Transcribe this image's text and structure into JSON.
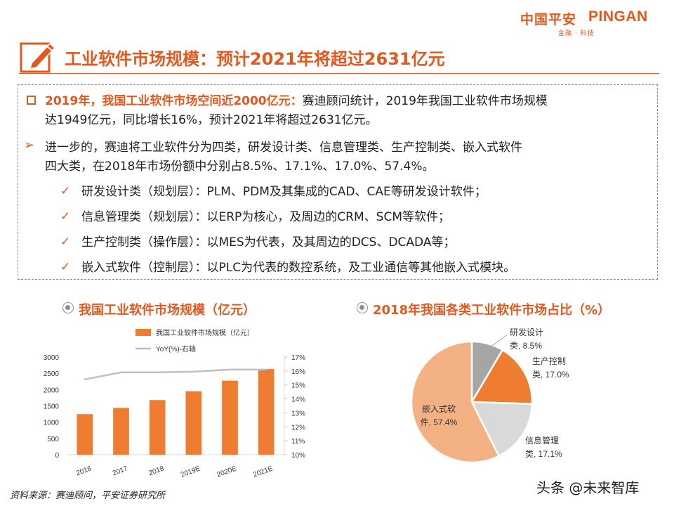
{
  "header": {
    "logo_cn": "中国平安",
    "logo_en": "PINGAN",
    "logo_sub": "金融 · 科技",
    "title": "工业软件市场规模：预计2021年将超过2631亿元"
  },
  "content": {
    "p1_bold": "2019年，我国工业软件市场空间近2000亿元：",
    "p1_rest": "赛迪顾问统计，2019年我国工业软件市场规模",
    "p1_line2": "达1949亿元，同比增长16%，预计2021年将超过2631亿元。",
    "p2_line1": "进一步的，赛迪将工业软件分为四类，研发设计类、信息管理类、生产控制类、嵌入式软件",
    "p2_line2": "四大类，在2018年市场份额中分别占8.5%、17.1%、17.0%、57.4%。",
    "items": [
      "研发设计类（规划层）：PLM、PDM及其集成的CAD、CAE等研发设计软件；",
      "信息管理类（规划层）：以ERP为核心，及周边的CRM、SCM等软件；",
      "生产控制类（操作层）：以MES为代表，及其周边的DCS、DCADA等；",
      "嵌入式软件（控制层）：以PLC为代表的数控系统，及工业通信等其他嵌入式模块。"
    ]
  },
  "footer": {
    "source": "资料来源：赛迪顾问，平安证券研究所",
    "watermark": "头条 @未来智库"
  },
  "colors": {
    "accent": "#e2581d",
    "bar": "#ee7d31",
    "line": "#bfbfbf",
    "pie_dev": "#a5a5a5",
    "pie_prod": "#ee7d31",
    "pie_info": "#d9d9d9",
    "pie_embed": "#f4b183"
  },
  "chart_data": [
    {
      "type": "bar",
      "title": "我国工业软件市场规模（亿元）",
      "categories": [
        "2016",
        "2017",
        "2018",
        "2019E",
        "2020E",
        "2021E"
      ],
      "series": [
        {
          "name": "我国工业软件市场规模（亿元）",
          "type": "bar",
          "axis": "left",
          "values": [
            1247,
            1438,
            1678,
            1949,
            2273,
            2631
          ]
        },
        {
          "name": "YoY(%)-右轴",
          "type": "line",
          "axis": "right",
          "values": [
            15.4,
            15.9,
            15.9,
            15.95,
            16.1,
            16.1
          ]
        }
      ],
      "ylim": [
        0,
        3000
      ],
      "yticks": [
        "0",
        "500",
        "1000",
        "1500",
        "2000",
        "2500",
        "3000"
      ],
      "y2lim": [
        10,
        17
      ],
      "y2ticks": [
        "10%",
        "11%",
        "12%",
        "13%",
        "14%",
        "15%",
        "16%",
        "17%"
      ],
      "legend": "top",
      "grid": false
    },
    {
      "type": "pie",
      "title": "2018年我国各类工业软件市场占比（%）",
      "slices": [
        {
          "name": "研发设计类",
          "value": 8.5,
          "label_line1": "研发设计",
          "label_line2": "类, 8.5%"
        },
        {
          "name": "生产控制类",
          "value": 17.0,
          "label_line1": "生产控制",
          "label_line2": "类, 17.0%"
        },
        {
          "name": "信息管理类",
          "value": 17.1,
          "label_line1": "信息管理",
          "label_line2": "类, 17.1%"
        },
        {
          "name": "嵌入式软件",
          "value": 57.4,
          "label_line1": "嵌入式软",
          "label_line2": "件, 57.4%"
        }
      ]
    }
  ]
}
